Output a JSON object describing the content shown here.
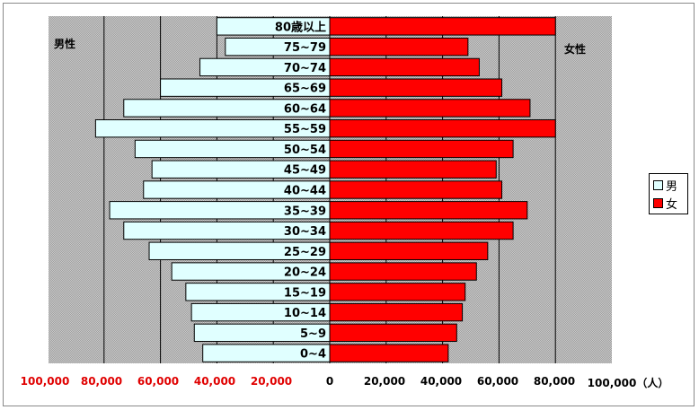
{
  "chart_data": {
    "type": "bar",
    "categories": [
      "80歳以上",
      "75~79",
      "70~74",
      "65~69",
      "60~64",
      "55~59",
      "50~54",
      "45~49",
      "40~44",
      "35~39",
      "30~34",
      "25~29",
      "20~24",
      "15~19",
      "10~14",
      "5~9",
      "0~4"
    ],
    "series": [
      {
        "name": "男",
        "color": "#e0ffff",
        "values": [
          40000,
          37000,
          46000,
          60000,
          73000,
          83000,
          69000,
          63000,
          66000,
          78000,
          73000,
          64000,
          56000,
          51000,
          49000,
          48000,
          45000
        ]
      },
      {
        "name": "女",
        "color": "#ff0000",
        "values": [
          80000,
          49000,
          53000,
          61000,
          71000,
          80000,
          65000,
          59000,
          61000,
          70000,
          65000,
          56000,
          52000,
          48000,
          47000,
          45000,
          42000
        ]
      }
    ],
    "male_label": "男性",
    "female_label": "女性",
    "xlim": [
      -100000,
      100000
    ],
    "tick_labels_left": [
      "100,000",
      "80,000",
      "60,000",
      "40,000",
      "20,000"
    ],
    "tick_labels_right": [
      "0",
      "20,000",
      "40,000",
      "60,000",
      "80,000",
      "100,000（人）"
    ],
    "grid": true,
    "legend": "right"
  }
}
